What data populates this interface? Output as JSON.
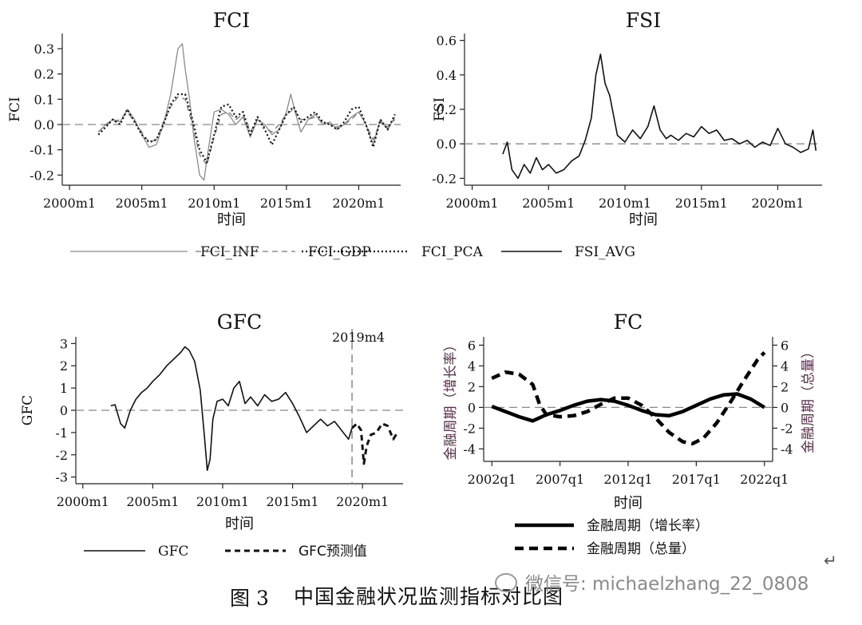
{
  "chart_data": [
    {
      "type": "line",
      "title": "FCI",
      "xlabel": "时间",
      "ylabel": "FCI",
      "x_tick_labels": [
        "2000m1",
        "2005m1",
        "2010m1",
        "2015m1",
        "2020m1"
      ],
      "x_ticks": [
        2000,
        2005,
        2010,
        2015,
        2020
      ],
      "xlim": [
        1999.5,
        2022.9
      ],
      "y_ticks": [
        -0.2,
        -0.1,
        0.0,
        0.1,
        0.2,
        0.3
      ],
      "y_tick_labels": [
        "-0.2",
        "-0.1",
        "0.0",
        "0.1",
        "0.2",
        "0.3"
      ],
      "ylim": [
        -0.24,
        0.36
      ],
      "reference_line": 0,
      "legend_placement": "bottom",
      "series": [
        {
          "name": "FCI_INF",
          "style": "solid-gray",
          "x": [
            2002.0,
            2002.5,
            2003.0,
            2003.5,
            2004.0,
            2004.5,
            2005.0,
            2005.5,
            2006.0,
            2006.5,
            2007.0,
            2007.5,
            2007.8,
            2008.0,
            2008.3,
            2008.6,
            2009.0,
            2009.3,
            2009.6,
            2010.0,
            2010.5,
            2011.0,
            2011.5,
            2012.0,
            2012.5,
            2013.0,
            2013.5,
            2014.0,
            2014.5,
            2015.0,
            2015.3,
            2015.6,
            2016.0,
            2016.5,
            2017.0,
            2017.5,
            2018.0,
            2018.5,
            2019.0,
            2019.5,
            2020.0,
            2020.5,
            2021.0,
            2021.5,
            2022.0,
            2022.5
          ],
          "values": [
            -0.03,
            0.0,
            0.02,
            0.01,
            0.06,
            0.02,
            -0.04,
            -0.09,
            -0.08,
            0.0,
            0.12,
            0.3,
            0.32,
            0.22,
            0.1,
            -0.05,
            -0.2,
            -0.22,
            -0.1,
            0.05,
            0.06,
            0.04,
            0.0,
            0.03,
            -0.05,
            0.02,
            0.0,
            -0.04,
            -0.02,
            0.05,
            0.12,
            0.05,
            -0.03,
            0.02,
            0.04,
            0.0,
            0.01,
            -0.02,
            0.0,
            0.03,
            0.05,
            0.0,
            -0.08,
            0.02,
            -0.02,
            0.03
          ]
        },
        {
          "name": "FCI_GDP",
          "style": "dashed-gray",
          "x": [
            2002.0,
            2002.5,
            2003.0,
            2003.5,
            2004.0,
            2004.5,
            2005.0,
            2005.5,
            2006.0,
            2006.5,
            2007.0,
            2007.5,
            2008.0,
            2008.5,
            2009.0,
            2009.5,
            2010.0,
            2010.5,
            2011.0,
            2011.5,
            2012.0,
            2012.5,
            2013.0,
            2013.5,
            2014.0,
            2014.5,
            2015.0,
            2015.5,
            2016.0,
            2016.5,
            2017.0,
            2017.5,
            2018.0,
            2018.5,
            2019.0,
            2019.5,
            2020.0,
            2020.5,
            2021.0,
            2021.5,
            2022.0,
            2022.5
          ],
          "values": [
            -0.03,
            0.0,
            0.01,
            0.02,
            0.05,
            0.01,
            -0.03,
            -0.07,
            -0.06,
            0.01,
            0.07,
            0.11,
            0.1,
            0.0,
            -0.12,
            -0.16,
            -0.05,
            0.04,
            0.05,
            0.02,
            0.04,
            -0.03,
            0.02,
            -0.01,
            -0.03,
            0.0,
            0.04,
            0.06,
            0.02,
            0.02,
            0.03,
            0.01,
            0.0,
            -0.01,
            0.0,
            0.02,
            0.05,
            0.0,
            -0.06,
            0.01,
            -0.01,
            0.02
          ]
        },
        {
          "name": "FCI_PCA",
          "style": "dotted-black",
          "x": [
            2002.0,
            2002.5,
            2003.0,
            2003.5,
            2004.0,
            2004.5,
            2005.0,
            2005.5,
            2006.0,
            2006.5,
            2007.0,
            2007.5,
            2008.0,
            2008.5,
            2009.0,
            2009.5,
            2010.0,
            2010.5,
            2011.0,
            2011.5,
            2012.0,
            2012.5,
            2013.0,
            2013.5,
            2014.0,
            2014.5,
            2015.0,
            2015.5,
            2016.0,
            2016.5,
            2017.0,
            2017.5,
            2018.0,
            2018.5,
            2019.0,
            2019.5,
            2020.0,
            2020.5,
            2021.0,
            2021.5,
            2022.0,
            2022.5
          ],
          "values": [
            -0.04,
            -0.01,
            0.02,
            0.0,
            0.06,
            0.01,
            -0.04,
            -0.07,
            -0.06,
            0.0,
            0.08,
            0.12,
            0.12,
            0.02,
            -0.1,
            -0.15,
            -0.04,
            0.07,
            0.08,
            0.03,
            0.05,
            -0.04,
            0.03,
            -0.02,
            -0.08,
            -0.02,
            0.04,
            0.07,
            0.01,
            0.03,
            0.05,
            0.01,
            0.0,
            -0.02,
            0.01,
            0.06,
            0.07,
            0.0,
            -0.09,
            0.02,
            -0.02,
            0.04
          ]
        }
      ]
    },
    {
      "type": "line",
      "title": "FSI",
      "xlabel": "时间",
      "ylabel": "FSI",
      "x_tick_labels": [
        "2000m1",
        "2005m1",
        "2010m1",
        "2015m1",
        "2020m1"
      ],
      "x_ticks": [
        2000,
        2005,
        2010,
        2015,
        2020
      ],
      "xlim": [
        1999.5,
        2022.9
      ],
      "y_ticks": [
        -0.2,
        0.0,
        0.2,
        0.4,
        0.6
      ],
      "y_tick_labels": [
        "-0.2",
        "0.0",
        "0.2",
        "0.4",
        "0.6"
      ],
      "ylim": [
        -0.24,
        0.64
      ],
      "reference_line": 0,
      "legend_placement": "bottom",
      "series": [
        {
          "name": "FSI_AVG",
          "style": "solid-black",
          "x": [
            2002.0,
            2002.3,
            2002.6,
            2003.0,
            2003.4,
            2003.8,
            2004.2,
            2004.6,
            2005.0,
            2005.5,
            2006.0,
            2006.5,
            2007.0,
            2007.4,
            2007.8,
            2008.1,
            2008.4,
            2008.7,
            2009.0,
            2009.5,
            2010.0,
            2010.5,
            2011.0,
            2011.5,
            2011.9,
            2012.3,
            2012.7,
            2013.0,
            2013.5,
            2014.0,
            2014.5,
            2015.0,
            2015.5,
            2016.0,
            2016.5,
            2017.0,
            2017.5,
            2018.0,
            2018.5,
            2019.0,
            2019.5,
            2020.0,
            2020.5,
            2021.0,
            2021.5,
            2022.0,
            2022.3,
            2022.5
          ],
          "values": [
            -0.06,
            0.01,
            -0.15,
            -0.2,
            -0.12,
            -0.17,
            -0.08,
            -0.15,
            -0.12,
            -0.17,
            -0.15,
            -0.1,
            -0.07,
            0.02,
            0.15,
            0.4,
            0.52,
            0.35,
            0.28,
            0.05,
            0.01,
            0.08,
            0.03,
            0.1,
            0.22,
            0.08,
            0.03,
            0.05,
            0.02,
            0.06,
            0.04,
            0.1,
            0.06,
            0.08,
            0.02,
            0.03,
            0.0,
            0.02,
            -0.02,
            0.01,
            -0.01,
            0.09,
            0.0,
            -0.02,
            -0.05,
            -0.03,
            0.08,
            -0.04
          ]
        }
      ]
    },
    {
      "type": "line",
      "title": "GFC",
      "xlabel": "时间",
      "ylabel": "GFC",
      "x_tick_labels": [
        "2000m1",
        "2005m1",
        "2010m1",
        "2015m1",
        "2020m1"
      ],
      "x_ticks": [
        2000,
        2005,
        2010,
        2015,
        2020
      ],
      "xlim": [
        1999.5,
        2022.9
      ],
      "y_ticks": [
        -3,
        -2,
        -1,
        0,
        1,
        2,
        3
      ],
      "y_tick_labels": [
        "-3",
        "-2",
        "-1",
        "0",
        "1",
        "2",
        "3"
      ],
      "ylim": [
        -3.3,
        3.3
      ],
      "reference_line": 0,
      "vline": {
        "x": 2019.25,
        "label": "2019m4"
      },
      "legend_placement": "bottom",
      "series": [
        {
          "name": "GFC",
          "style": "solid-black",
          "x": [
            2002.0,
            2002.3,
            2002.7,
            2003.0,
            2003.4,
            2003.8,
            2004.2,
            2004.6,
            2005.0,
            2005.5,
            2006.0,
            2006.5,
            2007.0,
            2007.3,
            2007.6,
            2008.0,
            2008.4,
            2008.7,
            2008.9,
            2009.1,
            2009.3,
            2009.6,
            2010.0,
            2010.4,
            2010.8,
            2011.2,
            2011.6,
            2012.0,
            2012.5,
            2013.0,
            2013.5,
            2014.0,
            2014.5,
            2015.0,
            2015.5,
            2016.0,
            2016.5,
            2017.0,
            2017.5,
            2018.0,
            2018.5,
            2019.0,
            2019.25
          ],
          "values": [
            0.2,
            0.25,
            -0.6,
            -0.8,
            0.0,
            0.5,
            0.8,
            1.0,
            1.3,
            1.6,
            2.0,
            2.3,
            2.6,
            2.85,
            2.7,
            2.2,
            0.9,
            -1.2,
            -2.7,
            -2.2,
            -0.4,
            0.4,
            0.5,
            0.2,
            1.0,
            1.3,
            0.3,
            0.6,
            0.2,
            0.7,
            0.4,
            0.5,
            0.8,
            0.3,
            -0.3,
            -1.0,
            -0.7,
            -0.4,
            -0.7,
            -0.5,
            -0.9,
            -1.3,
            -0.8
          ]
        },
        {
          "name": "GFC预测值",
          "style": "dashed-black",
          "x": [
            2019.25,
            2019.6,
            2019.9,
            2020.1,
            2020.3,
            2020.6,
            2021.0,
            2021.4,
            2021.8,
            2022.2,
            2022.5
          ],
          "values": [
            -0.8,
            -0.6,
            -0.9,
            -2.4,
            -1.6,
            -1.1,
            -1.0,
            -0.6,
            -0.7,
            -1.3,
            -1.0
          ]
        }
      ]
    },
    {
      "type": "line",
      "title": "FC",
      "xlabel": "时间",
      "ylabel": "金融周期（增长率）",
      "ylabel_right": "金融周期（总量）",
      "x_tick_labels": [
        "2002q1",
        "2007q1",
        "2012q1",
        "2017q1",
        "2022q1"
      ],
      "x_ticks": [
        2002,
        2007,
        2012,
        2017,
        2022
      ],
      "xlim": [
        2001.4,
        2022.6
      ],
      "y_ticks": [
        -4,
        -2,
        0,
        2,
        4,
        6
      ],
      "y_tick_labels": [
        "-4",
        "-2",
        "0",
        "2",
        "4",
        "6"
      ],
      "ylim": [
        -5.2,
        6.8
      ],
      "reference_line": 0,
      "legend_placement": "bottom",
      "series": [
        {
          "name": "金融周期（增长率）",
          "style": "thick-solid",
          "x": [
            2002.0,
            2003.0,
            2004.0,
            2005.0,
            2006.0,
            2007.0,
            2008.0,
            2009.0,
            2010.0,
            2011.0,
            2012.0,
            2013.0,
            2014.0,
            2015.0,
            2016.0,
            2017.0,
            2018.0,
            2019.0,
            2020.0,
            2021.0,
            2022.0
          ],
          "values": [
            0.1,
            -0.4,
            -0.9,
            -1.3,
            -0.7,
            -0.3,
            0.2,
            0.6,
            0.75,
            0.6,
            0.2,
            -0.3,
            -0.7,
            -0.8,
            -0.4,
            0.2,
            0.8,
            1.2,
            1.3,
            0.8,
            0.0
          ]
        },
        {
          "name": "金融周期（总量）",
          "style": "thick-dashed",
          "x": [
            2002.0,
            2003.0,
            2004.0,
            2005.0,
            2005.5,
            2006.0,
            2007.0,
            2008.0,
            2009.0,
            2010.0,
            2011.0,
            2012.0,
            2013.0,
            2014.0,
            2015.0,
            2016.0,
            2016.7,
            2017.5,
            2018.5,
            2019.5,
            2020.5,
            2021.5,
            2022.0
          ],
          "values": [
            2.8,
            3.4,
            3.2,
            2.2,
            0.3,
            -0.7,
            -0.9,
            -0.8,
            -0.4,
            0.3,
            0.9,
            0.9,
            0.2,
            -1.0,
            -2.4,
            -3.3,
            -3.5,
            -3.0,
            -1.5,
            0.5,
            2.6,
            4.6,
            5.3
          ]
        }
      ]
    }
  ],
  "caption": {
    "number": "图 3",
    "text": "中国金融状况监测指标对比图"
  },
  "watermark": {
    "text": "微信号: michaelzhang_22_0808",
    "icon": "wechat-icon"
  },
  "return_mark": "↵"
}
